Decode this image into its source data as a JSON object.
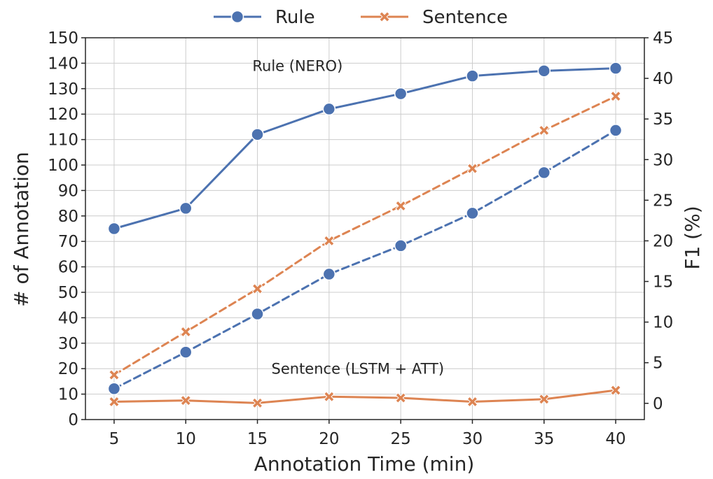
{
  "chart_data": {
    "type": "line",
    "xlabel": "Annotation Time (min)",
    "ylabel_left": "# of Annotation",
    "ylabel_right": "F1 (%)",
    "x": [
      5,
      10,
      15,
      20,
      25,
      30,
      35,
      40
    ],
    "xlim": [
      3,
      42
    ],
    "ylim_left": [
      0,
      150
    ],
    "ylim_right": [
      -2,
      45
    ],
    "xticks": [
      5,
      10,
      15,
      20,
      25,
      30,
      35,
      40
    ],
    "yticks_left": [
      0,
      10,
      20,
      30,
      40,
      50,
      60,
      70,
      80,
      90,
      100,
      110,
      120,
      130,
      140,
      150
    ],
    "yticks_right": [
      0,
      5,
      10,
      15,
      20,
      25,
      30,
      35,
      40,
      45
    ],
    "grid": true,
    "legend_position": "top-center",
    "legend": [
      {
        "label": "Rule",
        "color": "#4c72b0",
        "marker": "circle"
      },
      {
        "label": "Sentence",
        "color": "#dd8452",
        "marker": "x"
      }
    ],
    "series": [
      {
        "name": "Rule",
        "metric": "# of Annotation",
        "axis": "left",
        "style": "solid",
        "marker": "circle",
        "color": "#4c72b0",
        "values": [
          75,
          83,
          112,
          122,
          128,
          135,
          137,
          138
        ]
      },
      {
        "name": "Sentence",
        "metric": "# of Annotation",
        "axis": "left",
        "style": "solid",
        "marker": "x",
        "color": "#dd8452",
        "values": [
          7,
          7.5,
          6.5,
          9,
          8.5,
          7,
          8,
          11.5
        ]
      },
      {
        "name": "Rule",
        "metric": "F1 (%)",
        "axis": "right",
        "style": "dashed",
        "marker": "circle",
        "color": "#4c72b0",
        "values": [
          1.8,
          6.3,
          11,
          15.9,
          19.4,
          23.4,
          28.4,
          33.6
        ]
      },
      {
        "name": "Sentence",
        "metric": "F1 (%)",
        "axis": "right",
        "style": "dashed",
        "marker": "x",
        "color": "#dd8452",
        "values": [
          3.5,
          8.8,
          14.1,
          20,
          24.3,
          28.9,
          33.6,
          37.8
        ]
      }
    ],
    "annotations": [
      {
        "text": "Rule (NERO)",
        "x": 17.8,
        "y": 137
      },
      {
        "text": "Sentence (LSTM + ATT)",
        "x": 22,
        "y": 18
      }
    ]
  }
}
